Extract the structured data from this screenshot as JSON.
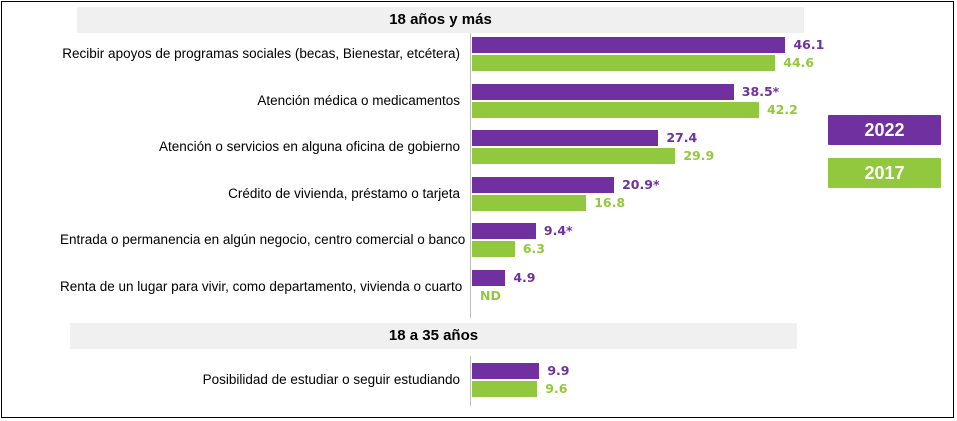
{
  "chart_data": {
    "type": "bar",
    "orientation": "horizontal",
    "xlim": [
      0,
      50
    ],
    "colors": {
      "2022": "#7030a0",
      "2017": "#92c83e",
      "header_bg": "#f0f0f0"
    },
    "legend": {
      "position": "right",
      "entries": [
        "2022",
        "2017"
      ]
    },
    "groups": [
      {
        "title": "18 años y más",
        "categories": [
          {
            "label": "Recibir apoyos de programas sociales (becas, Bienestar, etcétera)",
            "v2022": 46.1,
            "l2022": "46.1",
            "v2017": 44.6,
            "l2017": "44.6"
          },
          {
            "label": "Atención médica o medicamentos",
            "v2022": 38.5,
            "l2022": "38.5*",
            "v2017": 42.2,
            "l2017": "42.2"
          },
          {
            "label": "Atención o servicios en alguna oficina de gobierno",
            "v2022": 27.4,
            "l2022": "27.4",
            "v2017": 29.9,
            "l2017": "29.9"
          },
          {
            "label": "Crédito de vivienda, préstamo o tarjeta",
            "v2022": 20.9,
            "l2022": "20.9*",
            "v2017": 16.8,
            "l2017": "16.8"
          },
          {
            "label": "Entrada o permanencia en algún negocio, centro comercial o banco",
            "v2022": 9.4,
            "l2022": "9.4*",
            "v2017": 6.3,
            "l2017": "6.3"
          },
          {
            "label": "Renta de un lugar para vivir, como departamento, vivienda o cuarto",
            "v2022": 4.9,
            "l2022": "4.9",
            "v2017": null,
            "l2017": "ND"
          }
        ]
      },
      {
        "title": "18 a 35 años",
        "categories": [
          {
            "label": "Posibilidad de estudiar o seguir estudiando",
            "v2022": 9.9,
            "l2022": "9.9",
            "v2017": 9.6,
            "l2017": "9.6"
          }
        ]
      }
    ]
  }
}
